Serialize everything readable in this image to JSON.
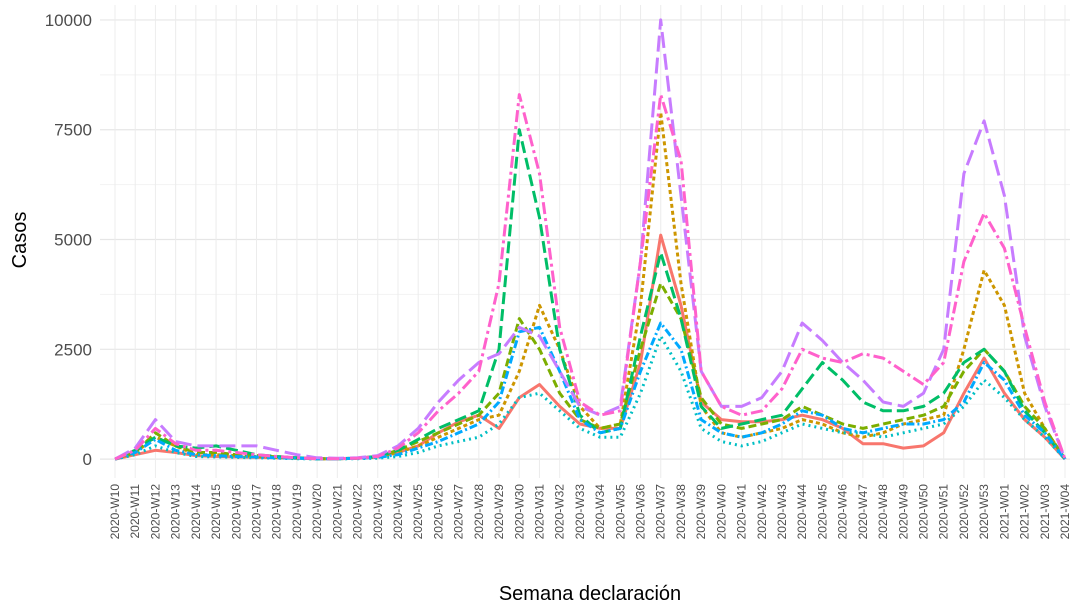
{
  "chart_data": {
    "type": "line",
    "xlabel": "Semana declaración",
    "ylabel": "Casos",
    "categories": [
      "2020-W10",
      "2020-W11",
      "2020-W12",
      "2020-W13",
      "2020-W14",
      "2020-W15",
      "2020-W16",
      "2020-W17",
      "2020-W18",
      "2020-W19",
      "2020-W20",
      "2020-W21",
      "2020-W22",
      "2020-W23",
      "2020-W24",
      "2020-W25",
      "2020-W26",
      "2020-W27",
      "2020-W28",
      "2020-W29",
      "2020-W30",
      "2020-W31",
      "2020-W32",
      "2020-W33",
      "2020-W34",
      "2020-W35",
      "2020-W36",
      "2020-W37",
      "2020-W38",
      "2020-W39",
      "2020-W40",
      "2020-W41",
      "2020-W42",
      "2020-W43",
      "2020-W44",
      "2020-W45",
      "2020-W46",
      "2020-W47",
      "2020-W48",
      "2020-W49",
      "2020-W50",
      "2020-W51",
      "2020-W52",
      "2020-W53",
      "2021-W01",
      "2021-W02",
      "2021-W03",
      "2021-W04"
    ],
    "series": [
      {
        "color": "#F8766D",
        "dash": "none",
        "values": [
          0,
          100,
          200,
          150,
          80,
          60,
          50,
          40,
          30,
          20,
          10,
          10,
          20,
          50,
          150,
          300,
          600,
          850,
          1000,
          700,
          1400,
          1700,
          1200,
          800,
          700,
          700,
          2200,
          5100,
          3500,
          1300,
          900,
          850,
          850,
          900,
          1000,
          900,
          700,
          350,
          350,
          250,
          300,
          600,
          1500,
          2300,
          1500,
          900,
          500,
          0
        ]
      },
      {
        "color": "#CD9600",
        "dash": "4,3",
        "values": [
          0,
          150,
          500,
          300,
          100,
          100,
          80,
          60,
          40,
          20,
          10,
          10,
          20,
          50,
          150,
          300,
          500,
          700,
          900,
          1000,
          2000,
          3500,
          2500,
          1200,
          700,
          800,
          3500,
          7900,
          4000,
          1200,
          600,
          500,
          600,
          700,
          900,
          800,
          600,
          500,
          600,
          800,
          900,
          1000,
          2500,
          4300,
          3500,
          1500,
          700,
          0
        ]
      },
      {
        "color": "#7CAE00",
        "dash": "8,4",
        "values": [
          0,
          150,
          600,
          300,
          150,
          150,
          100,
          80,
          50,
          30,
          10,
          10,
          20,
          60,
          200,
          400,
          600,
          800,
          1000,
          1500,
          3200,
          2500,
          1500,
          900,
          700,
          800,
          2500,
          4000,
          3200,
          1400,
          800,
          700,
          800,
          900,
          1200,
          1000,
          800,
          700,
          800,
          900,
          1000,
          1200,
          2000,
          2500,
          2000,
          1200,
          700,
          0
        ]
      },
      {
        "color": "#00BE67",
        "dash": "12,5",
        "values": [
          0,
          200,
          500,
          300,
          250,
          300,
          200,
          100,
          60,
          30,
          10,
          10,
          20,
          60,
          200,
          450,
          700,
          900,
          1100,
          2500,
          7500,
          5500,
          2500,
          1000,
          600,
          700,
          2800,
          4700,
          3200,
          1200,
          700,
          800,
          900,
          1000,
          1600,
          2200,
          1800,
          1300,
          1100,
          1100,
          1200,
          1500,
          2200,
          2500,
          2000,
          1100,
          600,
          0
        ]
      },
      {
        "color": "#00BFC4",
        "dash": "2,4",
        "values": [
          0,
          100,
          300,
          150,
          60,
          50,
          40,
          30,
          20,
          10,
          5,
          5,
          10,
          20,
          60,
          150,
          300,
          400,
          500,
          800,
          1400,
          1500,
          1100,
          700,
          500,
          500,
          1500,
          2800,
          2000,
          700,
          400,
          300,
          400,
          600,
          800,
          700,
          600,
          600,
          500,
          600,
          700,
          800,
          1200,
          1800,
          1400,
          900,
          500,
          0
        ]
      },
      {
        "color": "#00A9FF",
        "dash": "8,3,2,3",
        "values": [
          0,
          150,
          450,
          200,
          100,
          80,
          60,
          50,
          30,
          20,
          10,
          10,
          20,
          40,
          100,
          250,
          400,
          600,
          800,
          1300,
          2900,
          3000,
          2000,
          900,
          600,
          700,
          2000,
          3100,
          2500,
          900,
          600,
          500,
          600,
          800,
          1100,
          1000,
          700,
          600,
          700,
          800,
          800,
          900,
          1300,
          2200,
          1800,
          1000,
          600,
          0
        ]
      },
      {
        "color": "#C77CFF",
        "dash": "16,6",
        "values": [
          0,
          250,
          900,
          400,
          300,
          300,
          300,
          300,
          200,
          100,
          30,
          20,
          30,
          80,
          300,
          700,
          1300,
          1800,
          2200,
          2400,
          3000,
          2800,
          2000,
          1200,
          1000,
          1200,
          4500,
          10000,
          6000,
          2000,
          1200,
          1200,
          1400,
          2000,
          3100,
          2700,
          2200,
          1800,
          1300,
          1200,
          1500,
          2500,
          6500,
          7700,
          6000,
          2800,
          1200,
          0
        ]
      },
      {
        "color": "#FF61CC",
        "dash": "12,4,3,4",
        "values": [
          0,
          200,
          700,
          350,
          200,
          200,
          150,
          100,
          60,
          30,
          10,
          10,
          20,
          60,
          250,
          600,
          1100,
          1500,
          2000,
          4000,
          8300,
          6500,
          3000,
          1300,
          1000,
          1100,
          4500,
          8300,
          6800,
          2000,
          1200,
          1000,
          1100,
          1600,
          2500,
          2300,
          2200,
          2400,
          2300,
          2000,
          1700,
          2200,
          4500,
          5600,
          4800,
          3000,
          1300,
          0
        ]
      }
    ],
    "ylim": [
      -430,
      10340
    ],
    "yticks": [
      0,
      2500,
      5000,
      7500,
      10000
    ],
    "grid": true
  }
}
